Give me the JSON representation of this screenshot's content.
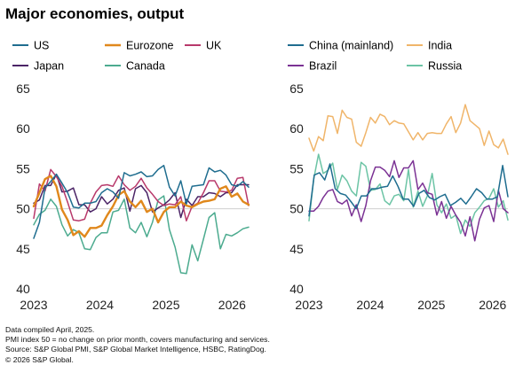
{
  "title": "Major economies,  output",
  "footnotes": [
    "Data compiled April,  2025.",
    "PMI index 50 = no change on prior month, covers manufacturing and services.",
    "Source: S&P Global PMI, S&P Global Market Intelligence, HSBC, RatingDog.",
    "© 2026 S&P Global."
  ],
  "chart_data": [
    {
      "type": "line",
      "title": "",
      "xlabel": "",
      "ylabel": "",
      "ylim": [
        40,
        65
      ],
      "yticks": [
        40,
        45,
        50,
        55,
        60,
        65
      ],
      "xlim": [
        2023.0,
        2026.25
      ],
      "xticks": [
        2023,
        2024,
        2025,
        2026
      ],
      "x_start": 2023.0,
      "x_step": 0.08333,
      "grid": false,
      "reference_line": 50,
      "legend": "top",
      "series": [
        {
          "name": "US",
          "color": "#1f6d8f",
          "values": [
            46.3,
            48.3,
            52.6,
            53.4,
            54.3,
            53.2,
            52.0,
            50.2,
            50.1,
            50.7,
            50.7,
            50.9,
            52.0,
            52.5,
            52.1,
            51.3,
            54.5,
            54.1,
            54.3,
            54.6,
            54.0,
            54.1,
            54.9,
            55.4,
            52.7,
            51.6,
            53.5,
            50.6,
            52.8,
            52.9,
            53.0,
            55.1,
            54.6,
            54.8,
            54.2,
            53.0,
            52.8,
            53.4,
            52.7
          ]
        },
        {
          "name": "Eurozone",
          "color": "#e0881c",
          "values": [
            50.3,
            52.0,
            53.7,
            54.1,
            52.8,
            49.9,
            48.6,
            46.7,
            47.2,
            46.5,
            47.6,
            47.6,
            47.9,
            49.2,
            50.3,
            51.7,
            52.2,
            50.9,
            50.2,
            51.0,
            49.6,
            50.0,
            48.3,
            49.6,
            50.2,
            50.2,
            50.9,
            50.4,
            50.2,
            50.6,
            50.9,
            51.0,
            51.2,
            52.5,
            52.8,
            51.5,
            51.9,
            50.9,
            50.5
          ]
        },
        {
          "name": "UK",
          "color": "#b8396b",
          "values": [
            48.8,
            53.1,
            52.2,
            54.9,
            54.0,
            52.8,
            50.8,
            48.6,
            48.5,
            48.7,
            50.7,
            52.1,
            52.9,
            53.0,
            52.8,
            54.1,
            53.0,
            52.3,
            52.8,
            53.8,
            52.6,
            51.8,
            50.9,
            50.4,
            50.6,
            50.5,
            51.5,
            48.5,
            50.3,
            50.7,
            52.0,
            53.5,
            53.5,
            52.2,
            52.1,
            52.3,
            53.8,
            53.9,
            50.4
          ]
        },
        {
          "name": "Japan",
          "color": "#4b2466",
          "values": [
            50.7,
            51.1,
            52.9,
            52.9,
            54.3,
            52.1,
            52.2,
            52.6,
            50.5,
            50.5,
            49.6,
            50.0,
            51.5,
            50.6,
            51.2,
            52.3,
            52.6,
            49.7,
            52.5,
            52.9,
            52.0,
            49.6,
            50.1,
            50.5,
            51.1,
            52.0,
            48.9,
            51.2,
            50.4,
            51.5,
            51.5,
            52.0,
            51.9,
            51.5,
            52.0,
            52.0,
            53.0,
            53.0,
            53.0
          ]
        },
        {
          "name": "Canada",
          "color": "#4cab8f",
          "values": [
            48.0,
            49.3,
            49.8,
            51.2,
            50.3,
            48.0,
            46.6,
            47.4,
            47.0,
            45.0,
            44.9,
            46.4,
            47.0,
            47.0,
            49.6,
            49.8,
            51.2,
            47.6,
            47.0,
            48.3,
            46.5,
            48.3,
            51.1,
            51.6,
            47.4,
            45.2,
            42.0,
            41.9,
            45.5,
            43.5,
            46.2,
            48.9,
            49.5,
            45.0,
            46.8,
            46.6,
            47.0,
            47.5,
            47.7
          ]
        }
      ]
    },
    {
      "type": "line",
      "title": "",
      "xlabel": "",
      "ylabel": "",
      "ylim": [
        40,
        65
      ],
      "yticks": [
        40,
        45,
        50,
        55,
        60,
        65
      ],
      "xlim": [
        2023.0,
        2026.25
      ],
      "xticks": [
        2023,
        2024,
        2025,
        2026
      ],
      "x_start": 2023.0,
      "x_step": 0.08333,
      "grid": false,
      "reference_line": 50,
      "legend": "top",
      "series": [
        {
          "name": "China (mainland)",
          "color": "#1f6d8f",
          "values": [
            49.1,
            54.2,
            54.5,
            53.6,
            55.6,
            52.5,
            51.9,
            51.7,
            50.9,
            50.0,
            51.6,
            51.6,
            52.5,
            52.5,
            52.7,
            52.8,
            54.1,
            52.8,
            51.2,
            51.2,
            50.3,
            51.9,
            52.3,
            51.4,
            51.1,
            51.5,
            51.8,
            50.4,
            50.8,
            51.3,
            50.6,
            51.5,
            52.5,
            52.0,
            51.2,
            51.2,
            51.5,
            55.4,
            51.5
          ]
        },
        {
          "name": "India",
          "color": "#f0b56a",
          "values": [
            58.8,
            57.2,
            59.0,
            58.5,
            61.6,
            61.5,
            59.4,
            62.3,
            61.4,
            61.2,
            58.3,
            57.8,
            59.5,
            61.4,
            60.7,
            61.8,
            61.5,
            60.5,
            61.0,
            60.7,
            60.6,
            59.6,
            58.6,
            59.5,
            58.6,
            59.4,
            59.5,
            59.4,
            59.4,
            60.6,
            61.5,
            59.5,
            60.7,
            63.0,
            61.0,
            60.5,
            60.0,
            57.9,
            59.7,
            58.0,
            57.6,
            58.7,
            56.8
          ]
        },
        {
          "name": "Brazil",
          "color": "#7b3294",
          "values": [
            49.7,
            49.7,
            50.3,
            51.4,
            52.2,
            52.4,
            50.9,
            50.6,
            51.1,
            49.1,
            50.5,
            48.4,
            50.4,
            53.5,
            55.2,
            55.2,
            54.8,
            54.0,
            56.0,
            53.9,
            55.1,
            55.1,
            56.0,
            52.4,
            53.2,
            52.0,
            51.8,
            49.2,
            50.9,
            48.8,
            50.3,
            49.2,
            48.3,
            46.6,
            49.0,
            46.0,
            48.7,
            50.1,
            50.4,
            48.4,
            52.3,
            50.0,
            49.5
          ]
        },
        {
          "name": "Russia",
          "color": "#6cc4a5",
          "values": [
            48.5,
            53.7,
            56.8,
            54.4,
            54.8,
            55.7,
            52.4,
            54.2,
            53.5,
            52.2,
            51.6,
            55.8,
            55.3,
            52.3,
            52.4,
            53.1,
            51.0,
            50.5,
            51.6,
            51.8,
            51.0,
            54.9,
            50.2,
            52.2,
            50.3,
            51.6,
            54.4,
            50.5,
            49.5,
            50.6,
            48.8,
            49.2,
            46.9,
            48.6,
            47.8,
            49.5,
            50.2,
            51.0,
            51.3,
            52.5,
            50.2,
            51.0,
            48.6
          ]
        }
      ]
    }
  ]
}
